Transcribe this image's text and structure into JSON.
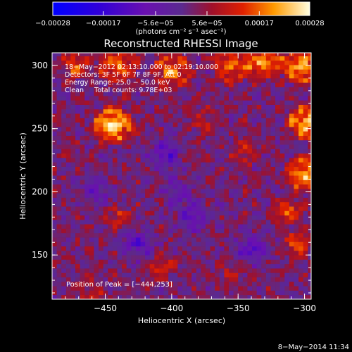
{
  "chart_data": {
    "type": "heatmap",
    "title": "Reconstructed RHESSI Image",
    "xlabel": "Heliocentric X (arcsec)",
    "ylabel": "Heliocentric Y (arcsec)",
    "xlim": [
      -490,
      -295
    ],
    "ylim": [
      115,
      310
    ],
    "x_ticks": [
      -450,
      -400,
      -350,
      -300
    ],
    "x_tick_labels": [
      "−450",
      "−400",
      "−350",
      "−300"
    ],
    "y_ticks": [
      150,
      200,
      250,
      300
    ],
    "y_tick_labels": [
      "150",
      "200",
      "250",
      "300"
    ],
    "colorbar": {
      "min": -0.00028,
      "max": 0.00028,
      "ticks": [
        -0.00028,
        -0.00017,
        -5.6e-05,
        5.6e-05,
        0.00017,
        0.00028
      ],
      "tick_labels": [
        "−0.00028",
        "−0.00017",
        "−5.6e−05",
        "5.6e−05",
        "0.00017",
        "0.00028"
      ],
      "unit_label": "(photons cm⁻² s⁻¹ asec⁻²)",
      "position": "top"
    },
    "annotations": [
      "18−May−2012 02:13:10.000 to 02:19:10.000",
      "Detectors: 3F 5F 6F 7F 8F 9F, Att 0",
      "Energy Range: 25.0 − 50.0 keV",
      "Clean     Total counts: 9.78E+03"
    ],
    "peak_label": "Position of Peak = [−444,253]",
    "peak": [
      -444,
      253
    ],
    "sources": [
      {
        "x": -444,
        "y": 253,
        "value": 0.00028
      },
      {
        "x": -298,
        "y": 255,
        "value": 0.00024
      },
      {
        "x": -300,
        "y": 215,
        "value": 0.00022
      },
      {
        "x": -302,
        "y": 300,
        "value": 0.00022
      },
      {
        "x": -330,
        "y": 303,
        "value": 0.0002
      },
      {
        "x": -400,
        "y": 295,
        "value": 0.00018
      },
      {
        "x": -440,
        "y": 300,
        "value": 0.00017
      },
      {
        "x": -355,
        "y": 300,
        "value": 0.00016
      },
      {
        "x": -472,
        "y": 300,
        "value": 0.00014
      },
      {
        "x": -305,
        "y": 160,
        "value": 0.00013
      },
      {
        "x": -312,
        "y": 185,
        "value": 0.00013
      },
      {
        "x": -406,
        "y": 140,
        "value": 0.00011
      },
      {
        "x": -440,
        "y": 180,
        "value": 0.0001
      },
      {
        "x": -460,
        "y": 120,
        "value": 9e-05
      },
      {
        "x": -345,
        "y": 230,
        "value": 9e-05
      },
      {
        "x": -375,
        "y": 255,
        "value": 8e-05
      },
      {
        "x": -355,
        "y": 135,
        "value": 8e-05
      }
    ],
    "negative_regions": [
      {
        "x": -405,
        "y": 230,
        "value": -0.00012
      },
      {
        "x": -425,
        "y": 160,
        "value": -0.00011
      },
      {
        "x": -385,
        "y": 180,
        "value": -0.0001
      },
      {
        "x": -340,
        "y": 155,
        "value": -0.00013
      },
      {
        "x": -395,
        "y": 200,
        "value": -9e-05
      },
      {
        "x": -455,
        "y": 200,
        "value": -8e-05
      }
    ]
  },
  "footer": {
    "date": "8−May−2014 11:34"
  }
}
